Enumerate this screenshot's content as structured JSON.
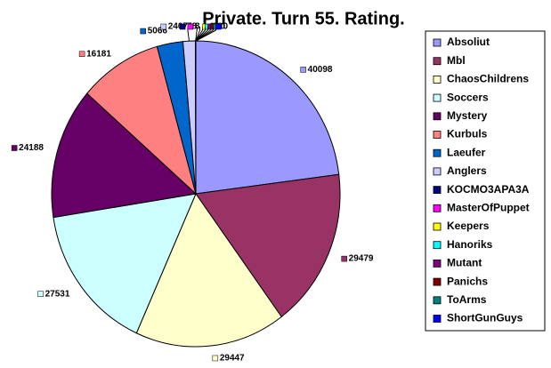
{
  "chart_data": {
    "type": "pie",
    "title": "Private. Turn 55. Rating.",
    "categories": [
      "Absoliut",
      "Mbl",
      "ChaosChildrens",
      "Soccers",
      "Mystery",
      "Kurbuls",
      "Laeufer",
      "Anglers",
      "KOCMO3APA3A",
      "MasterOfPuppet",
      "Keepers",
      "Hanoriks",
      "Mutant",
      "Panichs",
      "ToArms",
      "ShortGunGuys"
    ],
    "values": [
      40098,
      29479,
      29447,
      27531,
      24188,
      16181,
      5066,
      2407,
      78,
      8,
      0,
      0,
      0,
      0,
      0,
      0
    ],
    "colors": [
      "#9999ff",
      "#993366",
      "#ffffcc",
      "#ccffff",
      "#660066",
      "#ff8080",
      "#0066cc",
      "#ccccff",
      "#000080",
      "#ff00ff",
      "#ffff00",
      "#00ffff",
      "#800080",
      "#800000",
      "#008080",
      "#0000ff"
    ],
    "legend": "right"
  }
}
